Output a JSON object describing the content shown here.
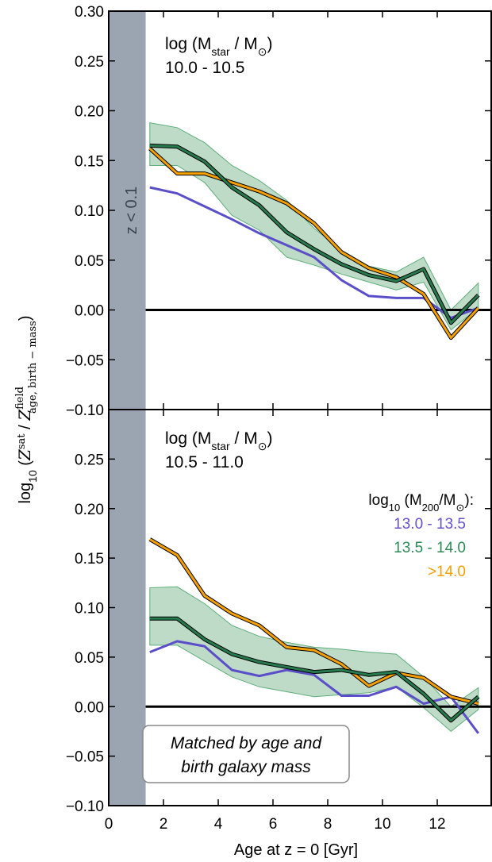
{
  "chart_data": {
    "type": "line",
    "xlabel": "Age at z = 0 [Gyr]",
    "ylabel_parts": {
      "log": "log",
      "log_sub": "10",
      "open": " (",
      "z": "Z",
      "sat_sup": "sat",
      "slash": " / ",
      "field_sup": "field",
      "field_sub": "age, birth − mass",
      "close": ")"
    },
    "xlim": [
      0,
      14
    ],
    "xticks": [
      0,
      2,
      4,
      6,
      8,
      10,
      12
    ],
    "xtick_labels": [
      "0",
      "2",
      "4",
      "6",
      "8",
      "10",
      "12"
    ],
    "ylim": [
      -0.1,
      0.3
    ],
    "yticks": [
      -0.1,
      -0.05,
      0.0,
      0.05,
      0.1,
      0.15,
      0.2,
      0.25,
      0.3
    ],
    "ytick_labels_top": [
      "−0.10",
      "−0.05",
      "0.00",
      "0.05",
      "0.10",
      "0.15",
      "0.20",
      "0.25",
      "0.30"
    ],
    "ytick_labels_bottom": [
      "−0.10",
      "−0.05",
      "0.00",
      "0.05",
      "0.10",
      "0.15",
      "0.20",
      "0.25"
    ],
    "shaded_region": {
      "x0": 0,
      "x1": 1.35,
      "label": "z < 0.1",
      "color": "#9aa5b1"
    },
    "zero_line": 0.0,
    "legend": {
      "title_main": "log",
      "title_sub": "10",
      "title_rest": " (M",
      "title_m_sub": "200",
      "title_end": "/M",
      "title_sun": "⊙",
      "title_colon": "):",
      "entries": [
        "13.0 - 13.5",
        "13.5 - 14.0",
        ">14.0"
      ],
      "colors": [
        "#6a51c8",
        "#2e8b57",
        "#f59f00"
      ]
    },
    "colors": {
      "purple": "#5b4fc9",
      "green": "#267a4d",
      "orange": "#f5a000",
      "band": "#a7cfb3",
      "band_edge": "#5fae7c"
    },
    "panels": [
      {
        "label_prefix": "log (M",
        "label_sub": "star",
        "label_mid": " / M",
        "label_sun": "⊙",
        "label_end": ")",
        "mass_range": "10.0 - 10.5",
        "x": [
          1.5,
          2.5,
          3.5,
          4.5,
          5.5,
          6.5,
          7.5,
          8.5,
          9.5,
          10.5,
          11.5,
          12.5,
          13.5
        ],
        "series": [
          {
            "name": "13.0 - 13.5",
            "color": "#5b4fc9",
            "values": [
              0.123,
              0.117,
              0.104,
              0.091,
              0.077,
              0.065,
              0.053,
              0.03,
              0.014,
              0.012,
              0.012,
              -0.008,
              0.002
            ]
          },
          {
            "name": "13.5 - 14.0",
            "color": "#267a4d",
            "values": [
              0.165,
              0.164,
              0.149,
              0.123,
              0.105,
              0.078,
              0.061,
              0.046,
              0.035,
              0.029,
              0.041,
              -0.013,
              0.015
            ],
            "band_low": [
              0.145,
              0.145,
              0.128,
              0.095,
              0.08,
              0.053,
              0.045,
              0.036,
              0.028,
              0.02,
              0.028,
              -0.02,
              0.002
            ],
            "band_high": [
              0.188,
              0.183,
              0.168,
              0.145,
              0.13,
              0.11,
              0.082,
              0.06,
              0.044,
              0.038,
              0.053,
              0.0,
              0.027
            ]
          },
          {
            "name": ">14.0",
            "color": "#f5a000",
            "values": [
              0.162,
              0.137,
              0.137,
              0.128,
              0.119,
              0.107,
              0.087,
              0.058,
              0.042,
              0.033,
              0.016,
              -0.028,
              0.002
            ]
          }
        ]
      },
      {
        "label_prefix": "log (M",
        "label_sub": "star",
        "label_mid": " / M",
        "label_sun": "⊙",
        "label_end": ")",
        "mass_range": "10.5 - 11.0",
        "x": [
          1.5,
          2.5,
          3.5,
          4.5,
          5.5,
          6.5,
          7.5,
          8.5,
          9.5,
          10.5,
          11.5,
          12.5,
          13.5
        ],
        "series": [
          {
            "name": "13.0 - 13.5",
            "color": "#5b4fc9",
            "values": [
              0.055,
              0.066,
              0.061,
              0.037,
              0.031,
              0.037,
              0.032,
              0.011,
              0.011,
              0.02,
              0.003,
              0.01,
              -0.027
            ]
          },
          {
            "name": "13.5 - 14.0",
            "color": "#267a4d",
            "values": [
              0.089,
              0.089,
              0.068,
              0.053,
              0.045,
              0.04,
              0.035,
              0.037,
              0.032,
              0.035,
              0.013,
              -0.014,
              0.01
            ],
            "band_low": [
              0.062,
              0.062,
              0.046,
              0.03,
              0.02,
              0.015,
              0.01,
              0.012,
              0.014,
              0.02,
              -0.001,
              -0.025,
              -0.003
            ],
            "band_high": [
              0.12,
              0.121,
              0.104,
              0.082,
              0.071,
              0.065,
              0.06,
              0.058,
              0.055,
              0.053,
              0.03,
              0.0,
              0.019
            ]
          },
          {
            "name": ">14.0",
            "color": "#f5a000",
            "values": [
              0.169,
              0.153,
              0.112,
              0.094,
              0.082,
              0.06,
              0.057,
              0.043,
              0.021,
              0.034,
              0.029,
              0.01,
              0.003
            ]
          }
        ]
      }
    ],
    "annotation": [
      "Matched by age and",
      "birth galaxy mass"
    ]
  }
}
